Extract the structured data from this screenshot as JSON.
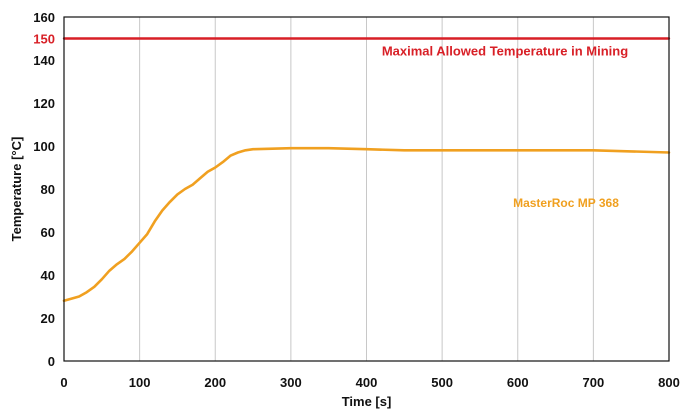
{
  "chart_data": {
    "type": "line",
    "xlabel": "Time [s]",
    "ylabel": "Temperature [°C]",
    "xlim": [
      0,
      800
    ],
    "ylim": [
      0,
      160
    ],
    "x_ticks": [
      0,
      100,
      200,
      300,
      400,
      500,
      600,
      700,
      800
    ],
    "y_ticks": [
      0,
      20,
      40,
      60,
      80,
      100,
      120,
      140,
      160
    ],
    "grid": "vertical",
    "series": [
      {
        "name": "MasterRoc MP 368",
        "color": "#f0a020",
        "x": [
          0,
          10,
          20,
          30,
          40,
          50,
          60,
          70,
          80,
          90,
          100,
          110,
          120,
          130,
          140,
          150,
          160,
          170,
          180,
          190,
          200,
          210,
          220,
          230,
          240,
          250,
          300,
          350,
          400,
          450,
          500,
          600,
          700,
          750,
          800
        ],
        "y": [
          28,
          29,
          30,
          32,
          34.5,
          38,
          42,
          45,
          47.5,
          51,
          55,
          59,
          65,
          70,
          74,
          77.5,
          80,
          82,
          85,
          88,
          90,
          92.5,
          95.5,
          97,
          98,
          98.5,
          99,
          99,
          98.5,
          98,
          98,
          98,
          98,
          97.5,
          97
        ]
      },
      {
        "name": "Maximal Allowed Temperature in Mining",
        "color": "#d81f26",
        "x": [
          0,
          800
        ],
        "y": [
          150,
          150
        ]
      }
    ],
    "reference_tick": {
      "value": 150,
      "label": "150",
      "color": "#d81f26"
    }
  }
}
